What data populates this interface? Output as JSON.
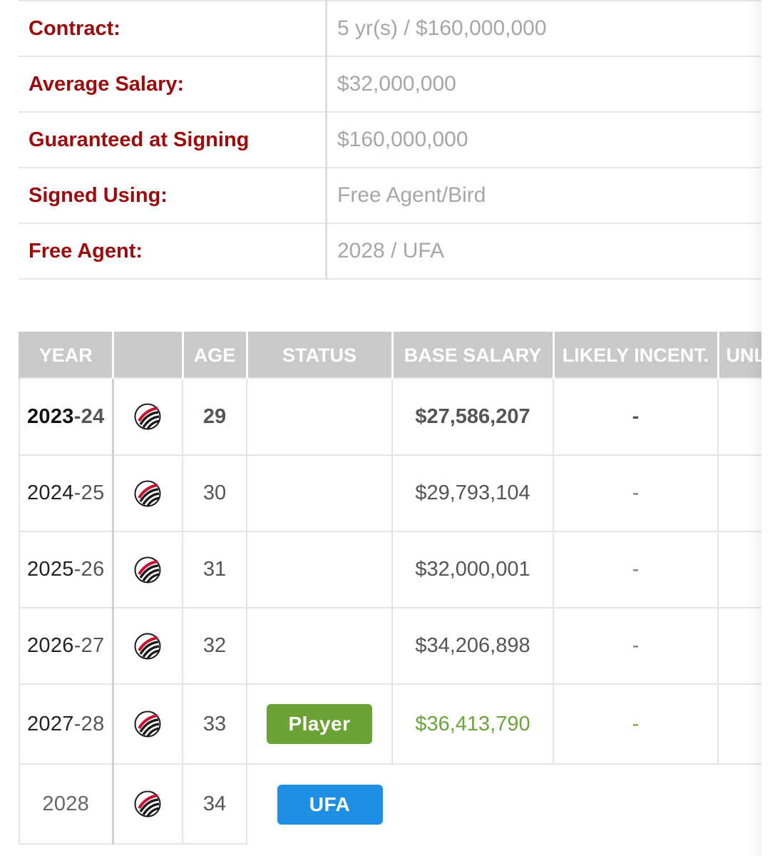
{
  "summary": [
    {
      "label": "Contract:",
      "value": "5 yr(s) / $160,000,000"
    },
    {
      "label": "Average Salary:",
      "value": "$32,000,000"
    },
    {
      "label": "Guaranteed at Signing",
      "value": "$160,000,000"
    },
    {
      "label": "Signed Using:",
      "value": "Free Agent/Bird"
    },
    {
      "label": "Free Agent:",
      "value": "2028 / UFA"
    }
  ],
  "salary_table": {
    "headers": [
      "YEAR",
      "",
      "AGE",
      "STATUS",
      "BASE SALARY",
      "LIKELY INCENT.",
      "UNL"
    ],
    "rows": [
      {
        "year_start": "2023",
        "year_end": "-24",
        "age": "29",
        "status": "",
        "base_salary": "$27,586,207",
        "likely_incent": "-"
      },
      {
        "year_start": "2024",
        "year_end": "-25",
        "age": "30",
        "status": "",
        "base_salary": "$29,793,104",
        "likely_incent": "-"
      },
      {
        "year_start": "2025",
        "year_end": "-26",
        "age": "31",
        "status": "",
        "base_salary": "$32,000,001",
        "likely_incent": "-"
      },
      {
        "year_start": "2026",
        "year_end": "-27",
        "age": "32",
        "status": "",
        "base_salary": "$34,206,898",
        "likely_incent": "-"
      },
      {
        "year_start": "2027",
        "year_end": "-28",
        "age": "33",
        "status": "Player",
        "base_salary": "$36,413,790",
        "likely_incent": "-"
      }
    ],
    "free_agent_row": {
      "year": "2028",
      "age": "34",
      "status": "UFA"
    },
    "team_logo_icon": "trail-blazers-pinwheel-icon",
    "colors": {
      "label_red": "#9c0b0b",
      "player_option_green": "#6aa334",
      "ufa_blue": "#1e8fe5",
      "header_gray": "#c9c9c9"
    }
  }
}
